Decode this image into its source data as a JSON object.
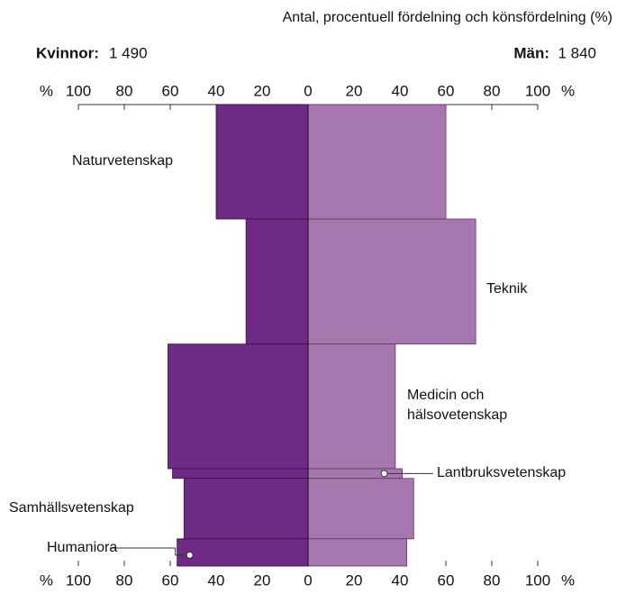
{
  "chart_data": {
    "type": "pyramid",
    "title": "Antal, procentuell fördelning och könsfördelning (%)",
    "left_header": {
      "name": "Kvinnor:",
      "count": "1 490"
    },
    "right_header": {
      "name": "Män:",
      "count": "1 840"
    },
    "unit": "%",
    "categories": [
      "Naturvetenskap",
      "Teknik",
      "Medicin och hälsovetenskap",
      "Lantbruksvetenskap",
      "Samhällsvetenskap",
      "Humaniora"
    ],
    "series": [
      {
        "name": "Kvinnor",
        "color": "#6e2a84",
        "values": [
          40,
          27,
          61,
          59,
          54,
          57
        ]
      },
      {
        "name": "Män",
        "color": "#a677ae",
        "values": [
          60,
          73,
          38,
          41,
          46,
          43
        ]
      }
    ],
    "shares": [
      24.8,
      27.1,
      27.0,
      2.1,
      13.1,
      5.9
    ],
    "xlim": [
      0,
      100
    ],
    "xticks": [
      0,
      20,
      40,
      60,
      80,
      100
    ]
  }
}
